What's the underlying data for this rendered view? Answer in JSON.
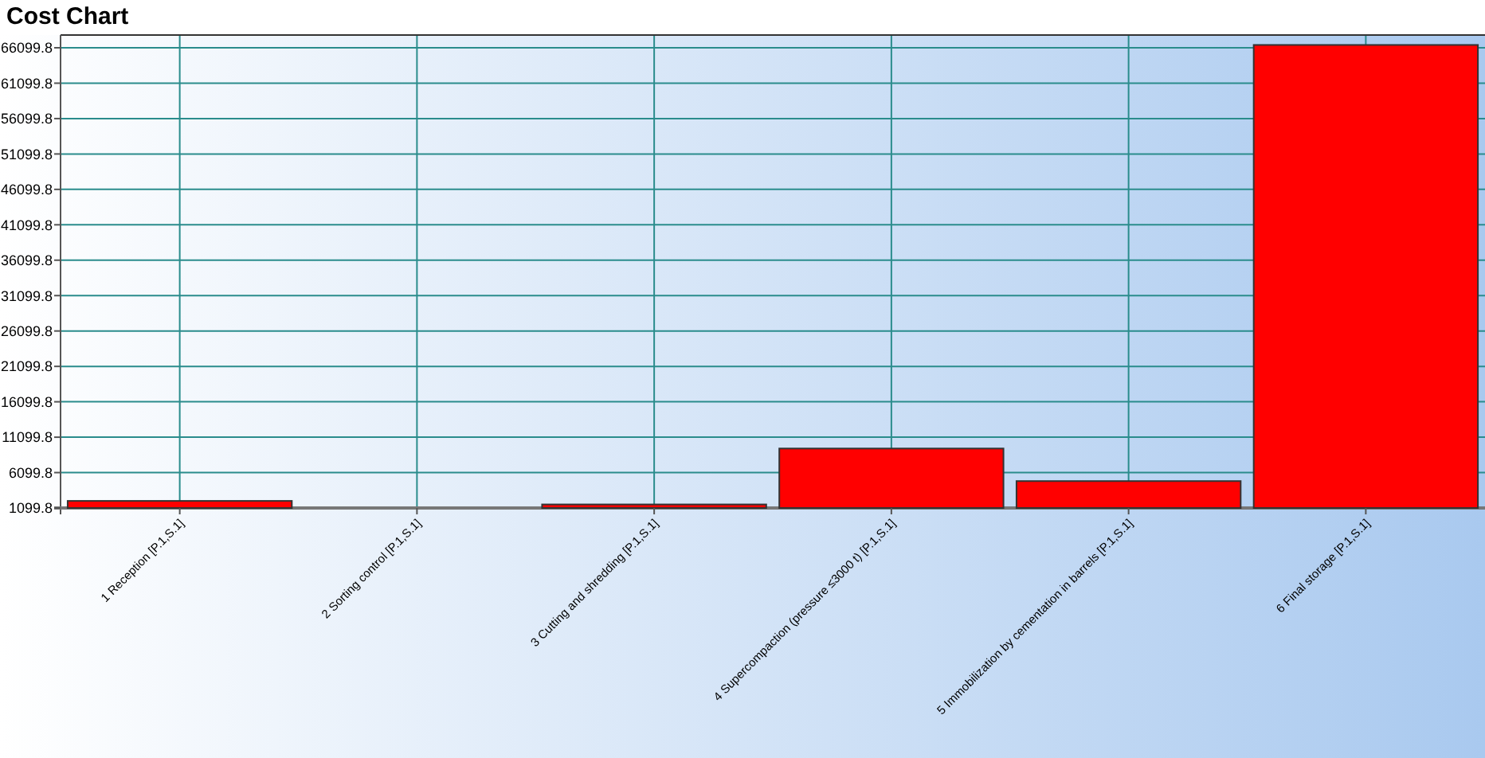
{
  "chart_data": {
    "type": "bar",
    "title": "Cost Chart",
    "categories": [
      "1 Reception [P.1,S.1]",
      "2 Sorting control [P.1,S.1]",
      "3 Cutting and shredding [P.1,S.1]",
      "4 Supercompaction (pressure ≤3000 t) [P.1,S.1]",
      "5 Immobilization by cementation in barrels [P.1,S.1]",
      "6 Final storage [P.1,S.1]"
    ],
    "values": [
      2100,
      1099.8,
      1600,
      9500,
      4900,
      66500
    ],
    "color": "#ff0000",
    "ylim": [
      1099.8,
      67900
    ],
    "yticks": [
      1099.8,
      6099.8,
      11099.8,
      16099.8,
      21099.8,
      26099.8,
      31099.8,
      36099.8,
      41099.8,
      46099.8,
      51099.8,
      56099.8,
      61099.8,
      66099.8
    ],
    "grid": true
  }
}
